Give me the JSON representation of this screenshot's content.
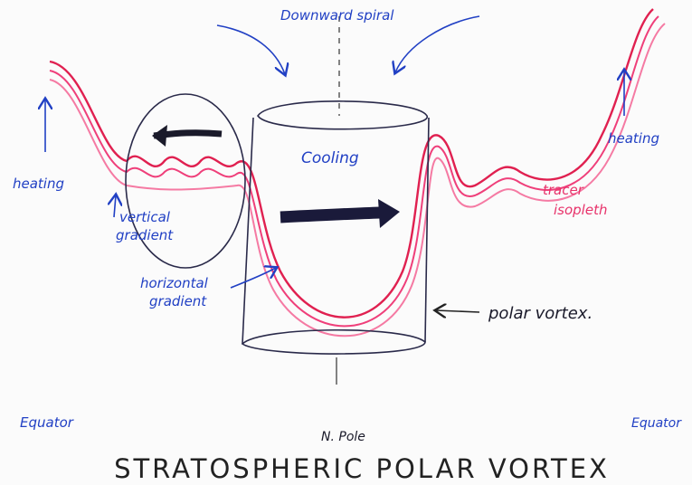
{
  "title": "STRATOSPHERIC POLAR VORTEX",
  "labels": [
    {
      "text": "Downward spiral"
    },
    {
      "text": "Cooling"
    },
    {
      "text": "heating"
    },
    {
      "text": "heating"
    },
    {
      "lines": [
        "tracer",
        "isopleth"
      ]
    },
    {
      "lines": [
        "vertical",
        "gradient"
      ]
    },
    {
      "lines": [
        "horizontal",
        "gradient"
      ]
    },
    {
      "text": "polar vortex."
    },
    {
      "text": "Equator"
    },
    {
      "text": "N. Pole"
    },
    {
      "text": "Equator"
    }
  ]
}
